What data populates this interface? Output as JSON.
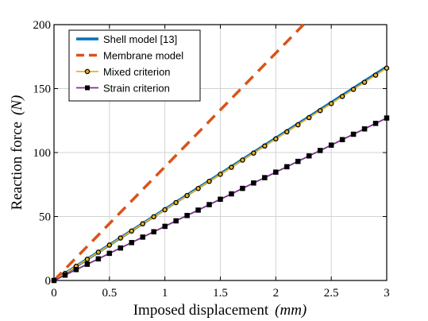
{
  "chart_data": {
    "type": "line",
    "title": "",
    "xlabel": "Imposed displacement",
    "xlabel_unit": "(mm)",
    "ylabel": "Reaction force",
    "ylabel_unit": "(N)",
    "xlim": [
      0,
      3
    ],
    "ylim": [
      0,
      200
    ],
    "x_ticks": [
      0,
      0.5,
      1,
      1.5,
      2,
      2.5,
      3
    ],
    "x_tick_labels": [
      "0",
      "0.5",
      "1",
      "1.5",
      "2",
      "2.5",
      "3"
    ],
    "y_ticks": [
      0,
      50,
      100,
      150,
      200
    ],
    "y_tick_labels": [
      "0",
      "50",
      "100",
      "150",
      "200"
    ],
    "grid": true,
    "legend_position": "top-left",
    "series": [
      {
        "name": "Shell model [13]",
        "color": "#0072BD",
        "style": "solid",
        "marker": "none",
        "x": [
          0,
          3
        ],
        "y": [
          0,
          167
        ]
      },
      {
        "name": "Membrane model",
        "color": "#D95319",
        "style": "dashed",
        "marker": "none",
        "x": [
          0,
          2.25
        ],
        "y": [
          0,
          200
        ]
      },
      {
        "name": "Mixed criterion",
        "color": "#EDB120",
        "style": "solid",
        "marker": "circle",
        "x": [
          0,
          0.1,
          0.2,
          0.3,
          0.4,
          0.5,
          0.6,
          0.7,
          0.8,
          0.9,
          1.0,
          1.1,
          1.2,
          1.3,
          1.4,
          1.5,
          1.6,
          1.7,
          1.8,
          1.9,
          2.0,
          2.1,
          2.2,
          2.3,
          2.4,
          2.5,
          2.6,
          2.7,
          2.8,
          2.9,
          3.0
        ],
        "y": [
          0,
          5.5,
          11.1,
          16.6,
          22.1,
          27.7,
          33.2,
          38.7,
          44.3,
          49.8,
          55.3,
          60.9,
          66.4,
          71.9,
          77.5,
          83.0,
          88.5,
          94.1,
          99.6,
          105.1,
          110.7,
          116.2,
          121.7,
          127.3,
          132.8,
          138.3,
          143.9,
          149.4,
          154.9,
          160.5,
          166.0
        ]
      },
      {
        "name": "Strain criterion",
        "color": "#7E2F8E",
        "style": "solid",
        "marker": "square",
        "x": [
          0,
          0.1,
          0.2,
          0.3,
          0.4,
          0.5,
          0.6,
          0.7,
          0.8,
          0.9,
          1.0,
          1.1,
          1.2,
          1.3,
          1.4,
          1.5,
          1.6,
          1.7,
          1.8,
          1.9,
          2.0,
          2.1,
          2.2,
          2.3,
          2.4,
          2.5,
          2.6,
          2.7,
          2.8,
          2.9,
          3.0
        ],
        "y": [
          0,
          4.2,
          8.5,
          12.7,
          16.9,
          21.2,
          25.4,
          29.6,
          33.9,
          38.1,
          42.3,
          46.6,
          50.8,
          55.0,
          59.3,
          63.5,
          67.7,
          72.0,
          76.2,
          80.4,
          84.7,
          88.9,
          93.1,
          97.4,
          101.6,
          105.8,
          110.1,
          114.3,
          118.5,
          122.8,
          127.0
        ]
      }
    ]
  }
}
